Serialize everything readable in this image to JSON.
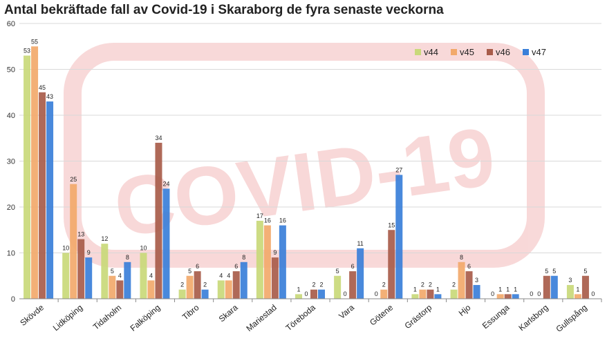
{
  "chart_data": {
    "type": "bar",
    "title": "Antal bekräftade fall av Covid-19 i Skaraborg de fyra senaste veckorna",
    "xlabel": "",
    "ylabel": "",
    "ylim": [
      0,
      60
    ],
    "yticks": [
      0,
      10,
      20,
      30,
      40,
      50,
      60
    ],
    "grid": true,
    "legend_position": "top-right",
    "watermark_text": "COVID-19",
    "categories": [
      "Skövde",
      "Lidköping",
      "Tidaholm",
      "Falköping",
      "Tibro",
      "Skara",
      "Mariestad",
      "Töreboda",
      "Vara",
      "Götene",
      "Grästorp",
      "Hjo",
      "Essunga",
      "Karlsborg",
      "Gullspång"
    ],
    "series": [
      {
        "name": "v44",
        "color": "#c9d97a",
        "values": [
          53,
          10,
          12,
          10,
          2,
          4,
          17,
          1,
          5,
          0,
          1,
          2,
          0,
          0,
          3
        ]
      },
      {
        "name": "v45",
        "color": "#f2a96b",
        "values": [
          55,
          25,
          5,
          4,
          5,
          4,
          16,
          0,
          0,
          2,
          2,
          8,
          1,
          0,
          1
        ]
      },
      {
        "name": "v46",
        "color": "#a85c4a",
        "values": [
          45,
          13,
          4,
          34,
          6,
          6,
          9,
          2,
          6,
          15,
          2,
          6,
          1,
          5,
          5
        ]
      },
      {
        "name": "v47",
        "color": "#3a7fd9",
        "values": [
          43,
          9,
          8,
          24,
          2,
          8,
          16,
          2,
          11,
          27,
          1,
          3,
          1,
          5,
          0
        ]
      }
    ]
  }
}
